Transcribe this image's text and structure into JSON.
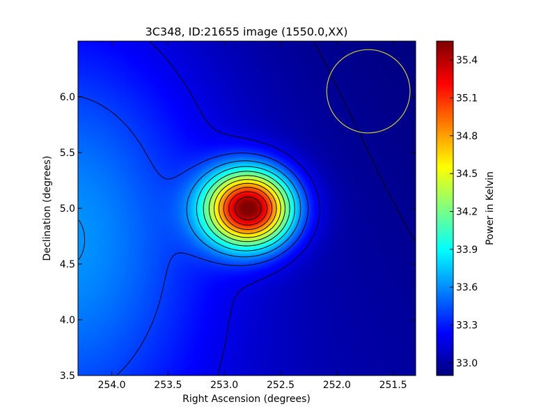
{
  "chart_data": {
    "type": "heatmap",
    "title": "3C348, ID:21655 image (1550.0,XX)",
    "xlabel": "Right Ascension (degrees)",
    "ylabel": "Declination (degrees)",
    "xlim": [
      254.3,
      251.3
    ],
    "ylim": [
      3.5,
      6.5
    ],
    "x_ticks": [
      254.0,
      253.5,
      253.0,
      252.5,
      252.0,
      251.5
    ],
    "x_tick_labels": [
      "254.0",
      "253.5",
      "253.0",
      "252.5",
      "252.0",
      "251.5"
    ],
    "y_ticks": [
      3.5,
      4.0,
      4.5,
      5.0,
      5.5,
      6.0
    ],
    "y_tick_labels": [
      "3.5",
      "4.0",
      "4.5",
      "5.0",
      "5.5",
      "6.0"
    ],
    "colormap": "jet",
    "colorbar": {
      "label": "Power in Kelvin",
      "range": [
        32.9,
        35.55
      ],
      "ticks": [
        33.0,
        33.3,
        33.6,
        33.9,
        34.2,
        34.5,
        34.8,
        35.1,
        35.4
      ],
      "tick_labels": [
        "33.0",
        "33.3",
        "33.6",
        "33.9",
        "34.2",
        "34.5",
        "34.8",
        "35.1",
        "35.4"
      ]
    },
    "source": {
      "ra": 252.78,
      "dec": 5.0,
      "peak_kelvin": 35.55
    },
    "background_kelvin": 32.9,
    "beam_circle": {
      "ra": 251.72,
      "dec": 6.05,
      "radius_deg": 0.37,
      "color": "#cccc33"
    },
    "grid": false
  }
}
